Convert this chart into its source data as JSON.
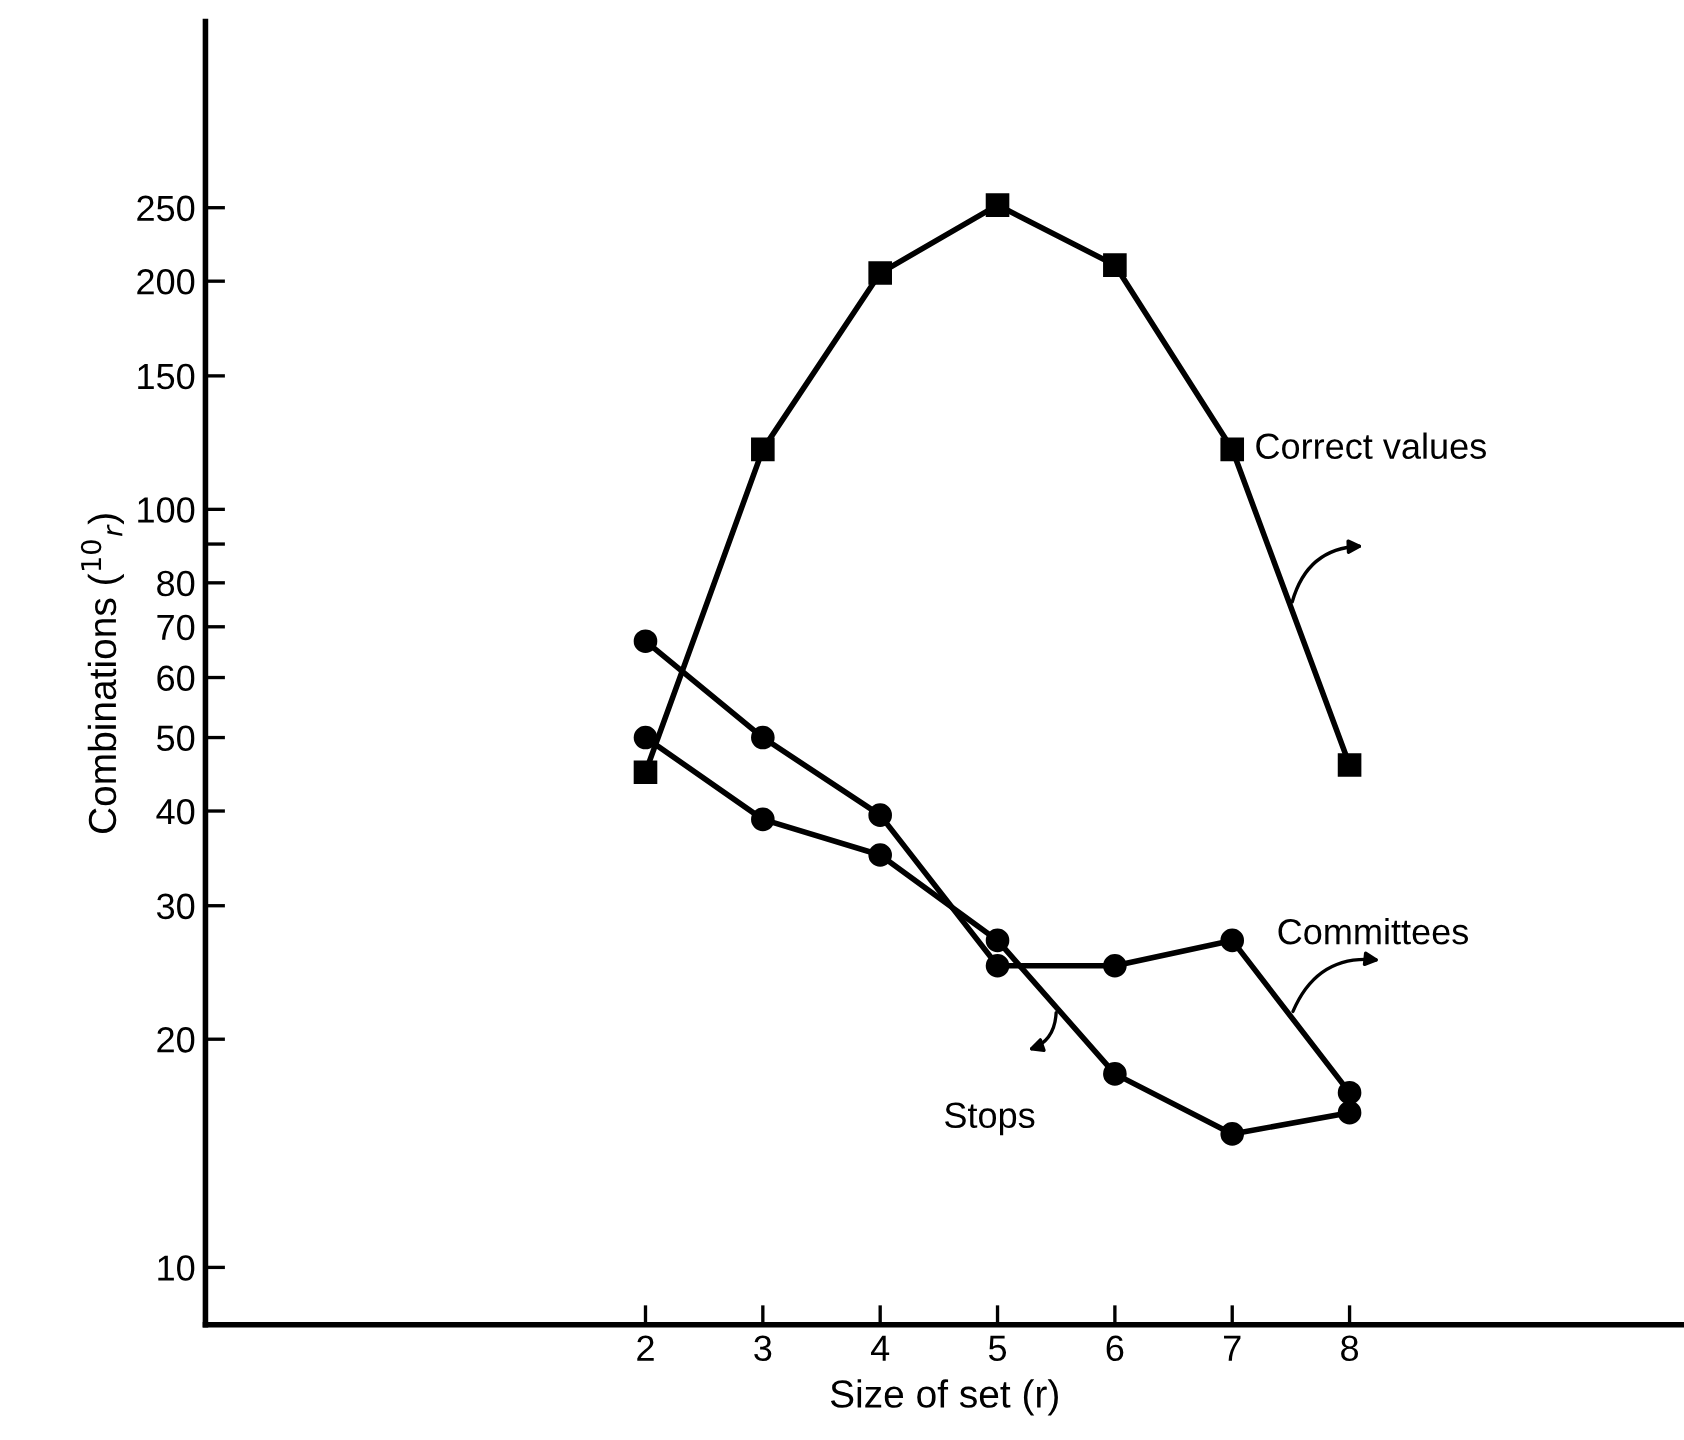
{
  "chart_data": {
    "type": "line",
    "xlabel": "Size of set (r)",
    "ylabel": "Combinations ($^{10}$$_{r}$)",
    "x": [
      2,
      3,
      4,
      5,
      6,
      7,
      8
    ],
    "series": [
      {
        "name": "Correct values",
        "color": "#000000",
        "marker": "square",
        "values": [
          45,
          120,
          205,
          252,
          210,
          120,
          46
        ]
      },
      {
        "name": "Committees",
        "color": "#000000",
        "marker": "circle",
        "values": [
          67,
          50,
          39.5,
          25,
          25,
          27,
          17
        ]
      },
      {
        "name": "Stops",
        "color": "#000000",
        "marker": "circle",
        "values": [
          50,
          39,
          35,
          27,
          18,
          15,
          16
        ]
      }
    ],
    "log": "y",
    "xlim": [
      -1.75,
      10.85
    ],
    "ylim": [
      8.4,
      440
    ],
    "xticks": [
      2,
      3,
      4,
      5,
      6,
      7,
      8
    ],
    "yticks": [
      10,
      20,
      30,
      40,
      50,
      60,
      70,
      80,
      {
        "value": 90,
        "label": null
      },
      100,
      150,
      200,
      250
    ],
    "grid": false,
    "legend": false,
    "line_style": "solid"
  }
}
